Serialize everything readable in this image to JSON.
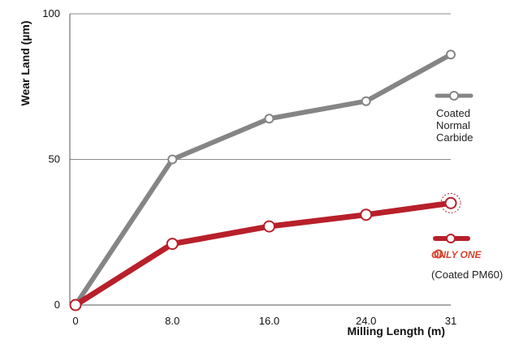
{
  "chart_data": {
    "type": "line",
    "ylabel": "Wear Land (µm)",
    "xlabel": "Milling Length (m)",
    "x": [
      0,
      8.0,
      16.0,
      24.0,
      31
    ],
    "x_tick_labels": [
      "0",
      "8.0",
      "16.0",
      "24.0",
      "31"
    ],
    "y_ticks": [
      0,
      50,
      100
    ],
    "y_tick_labels": [
      "0",
      "50",
      "100"
    ],
    "xlim": [
      0,
      31
    ],
    "ylim": [
      0,
      100
    ],
    "grid": "horizontal",
    "series": [
      {
        "legend_lines": [
          "Coated",
          "Normal",
          "Carbide"
        ],
        "color": "#858585",
        "values": [
          0,
          50,
          64,
          70,
          86
        ]
      },
      {
        "legend_brand": "ONLY ONE",
        "legend_lines": [
          "(Coated PM60)"
        ],
        "color": "#b8202a",
        "values": [
          0,
          21,
          27,
          31,
          35
        ]
      }
    ]
  }
}
